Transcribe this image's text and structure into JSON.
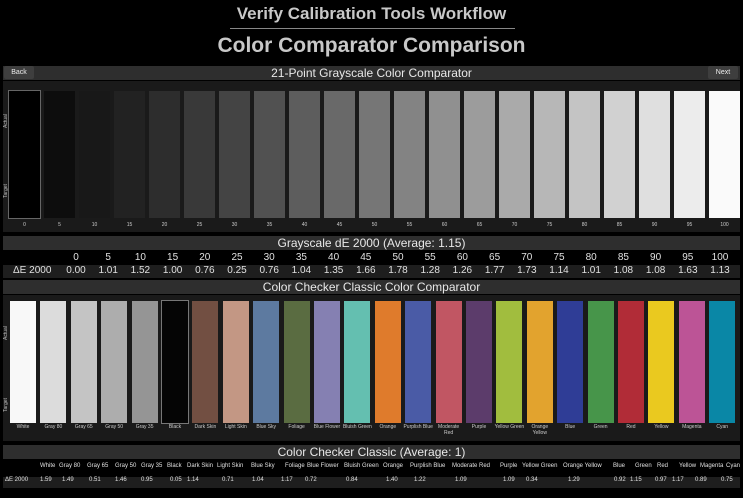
{
  "header": {
    "workflow_title": "Verify Calibration Tools Workflow",
    "page_title": "Color Comparator Comparison"
  },
  "nav": {
    "back_label": "Back",
    "next_label": "Next"
  },
  "grayscale": {
    "title": "21-Point Grayscale Color Comparator",
    "actual_label": "Actual",
    "target_label": "Target",
    "swatches": [
      {
        "label": "0",
        "color": "#000000"
      },
      {
        "label": "5",
        "color": "#0d0d0d"
      },
      {
        "label": "10",
        "color": "#181818"
      },
      {
        "label": "15",
        "color": "#222222"
      },
      {
        "label": "20",
        "color": "#2d2d2d"
      },
      {
        "label": "25",
        "color": "#393939"
      },
      {
        "label": "30",
        "color": "#444444"
      },
      {
        "label": "35",
        "color": "#515151"
      },
      {
        "label": "40",
        "color": "#5d5d5d"
      },
      {
        "label": "45",
        "color": "#696969"
      },
      {
        "label": "50",
        "color": "#767676"
      },
      {
        "label": "55",
        "color": "#838383"
      },
      {
        "label": "60",
        "color": "#909090"
      },
      {
        "label": "65",
        "color": "#9c9c9c"
      },
      {
        "label": "70",
        "color": "#aaaaaa"
      },
      {
        "label": "75",
        "color": "#b7b7b7"
      },
      {
        "label": "80",
        "color": "#c4c4c4"
      },
      {
        "label": "85",
        "color": "#d1d1d1"
      },
      {
        "label": "90",
        "color": "#dfdfdf"
      },
      {
        "label": "95",
        "color": "#ececec"
      },
      {
        "label": "100",
        "color": "#fafafa"
      }
    ],
    "de_title": "Grayscale dE 2000 (Average: 1.15)",
    "de_row_label": "ΔE 2000",
    "de_headers": [
      "0",
      "5",
      "10",
      "15",
      "20",
      "25",
      "30",
      "35",
      "40",
      "45",
      "50",
      "55",
      "60",
      "65",
      "70",
      "75",
      "80",
      "85",
      "90",
      "95",
      "100"
    ],
    "de_values": [
      "0.00",
      "1.01",
      "1.52",
      "1.00",
      "0.76",
      "0.25",
      "0.76",
      "1.04",
      "1.35",
      "1.66",
      "1.78",
      "1.28",
      "1.26",
      "1.77",
      "1.73",
      "1.14",
      "1.01",
      "1.08",
      "1.08",
      "1.63",
      "1.13"
    ]
  },
  "checker": {
    "title": "Color Checker Classic Color Comparator",
    "actual_label": "Actual",
    "target_label": "Target",
    "swatches": [
      {
        "label": "White",
        "color": "#f8f8f8"
      },
      {
        "label": "Gray 80",
        "color": "#dcdcdc"
      },
      {
        "label": "Gray 65",
        "color": "#c4c4c4"
      },
      {
        "label": "Gray 50",
        "color": "#adadad"
      },
      {
        "label": "Gray 35",
        "color": "#959595"
      },
      {
        "label": "Black",
        "color": "#050505"
      },
      {
        "label": "Dark Skin",
        "color": "#724f42"
      },
      {
        "label": "Light Skin",
        "color": "#c39784"
      },
      {
        "label": "Blue Sky",
        "color": "#5d7aa0"
      },
      {
        "label": "Foliage",
        "color": "#5a6c41"
      },
      {
        "label": "Blue Flower",
        "color": "#8580b2"
      },
      {
        "label": "Bluish Green",
        "color": "#64bfb0"
      },
      {
        "label": "Orange",
        "color": "#df7b2c"
      },
      {
        "label": "Purplish Blue",
        "color": "#4a5ba6"
      },
      {
        "label": "Moderate Red",
        "color": "#c15663"
      },
      {
        "label": "Purple",
        "color": "#5c3c6b"
      },
      {
        "label": "Yellow Green",
        "color": "#a1bd3e"
      },
      {
        "label": "Orange Yellow",
        "color": "#e2a32e"
      },
      {
        "label": "Blue",
        "color": "#2f3d96"
      },
      {
        "label": "Green",
        "color": "#47954a"
      },
      {
        "label": "Red",
        "color": "#b12c37"
      },
      {
        "label": "Yellow",
        "color": "#eac91f"
      },
      {
        "label": "Magenta",
        "color": "#bc5496"
      },
      {
        "label": "Cyan",
        "color": "#0a87a6"
      }
    ],
    "de_title": "Color Checker Classic (Average: 1)",
    "de_row_label": "ΔE 2000",
    "de_headers": [
      "White",
      "Gray 80",
      "Gray 65",
      "Gray 50",
      "Gray 35",
      "Black",
      "Dark Skin",
      "Light Skin",
      "Blue Sky",
      "Foliage",
      "Blue Flower",
      "Bluish Green",
      "Orange",
      "Purplish Blue",
      "Moderate Red",
      "Purple",
      "Yellow Green",
      "Orange Yellow",
      "Blue",
      "Green",
      "Red",
      "Yellow",
      "Magenta",
      "Cyan"
    ],
    "de_values": [
      "1.59",
      "1.49",
      "0.51",
      "1.46",
      "0.95",
      "0.05",
      "1.14",
      "0.71",
      "1.04",
      "1.17",
      "0.72",
      "0.84",
      "1.40",
      "1.22",
      "1.09",
      "1.09",
      "0.34",
      "1.29",
      "0.92",
      "1.15",
      "0.97",
      "1.17",
      "0.89",
      "0.75"
    ]
  }
}
